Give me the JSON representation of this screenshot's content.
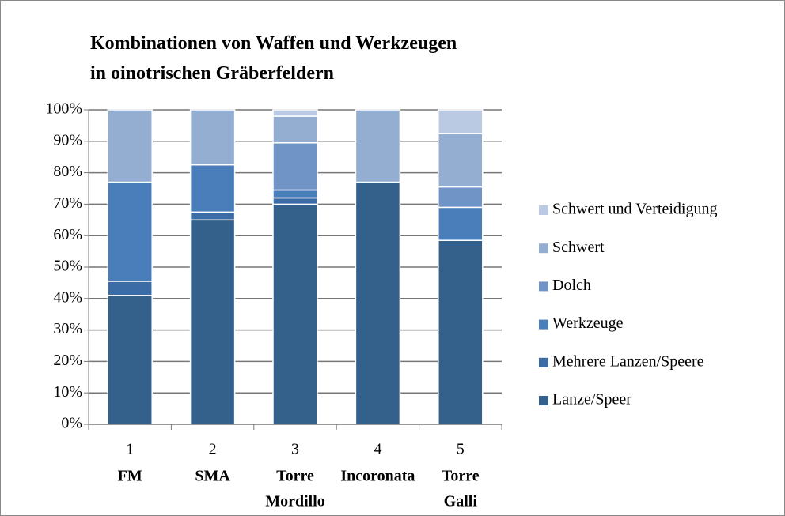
{
  "chart_data": {
    "type": "stacked_bar",
    "title": [
      "Kombinationen von Waffen und Werkzeugen",
      "in oinotrischen Gräberfeldern"
    ],
    "categories": [
      "1",
      "2",
      "3",
      "4",
      "5"
    ],
    "category_names": [
      [
        "FM"
      ],
      [
        "SMA"
      ],
      [
        "Torre",
        "Mordillo"
      ],
      [
        "Incoronata"
      ],
      [
        "Torre",
        "Galli"
      ]
    ],
    "series": [
      {
        "name": "Lanze/Speer",
        "color": "#34618c",
        "values": [
          41,
          65,
          70,
          77,
          58.5
        ]
      },
      {
        "name": "Mehrere Lanzen/Speere",
        "color": "#3c6ca6",
        "values": [
          4.5,
          2.5,
          2,
          0,
          0
        ]
      },
      {
        "name": "Werkzeuge",
        "color": "#4a7eba",
        "values": [
          31.5,
          15,
          2.5,
          0,
          10.5
        ]
      },
      {
        "name": "Dolch",
        "color": "#7094c6",
        "values": [
          0,
          0,
          15,
          0,
          6.5
        ]
      },
      {
        "name": "Schwert",
        "color": "#93aed1",
        "values": [
          23,
          17.5,
          8.5,
          23,
          17
        ]
      },
      {
        "name": "Schwert und Verteidigung",
        "color": "#b9cae2",
        "values": [
          0,
          0,
          2,
          0,
          7.5
        ]
      }
    ],
    "ylim": [
      0,
      100
    ],
    "yticks": [
      {
        "value": 0,
        "label": "0%"
      },
      {
        "value": 10,
        "label": "10%"
      },
      {
        "value": 20,
        "label": "20%"
      },
      {
        "value": 30,
        "label": "30%"
      },
      {
        "value": 40,
        "label": "40%"
      },
      {
        "value": 50,
        "label": "50%"
      },
      {
        "value": 60,
        "label": "60%"
      },
      {
        "value": 70,
        "label": "70%"
      },
      {
        "value": 80,
        "label": "80%"
      },
      {
        "value": 90,
        "label": "90%"
      },
      {
        "value": 100,
        "label": "100%"
      }
    ],
    "grid": true,
    "legend": "right"
  }
}
